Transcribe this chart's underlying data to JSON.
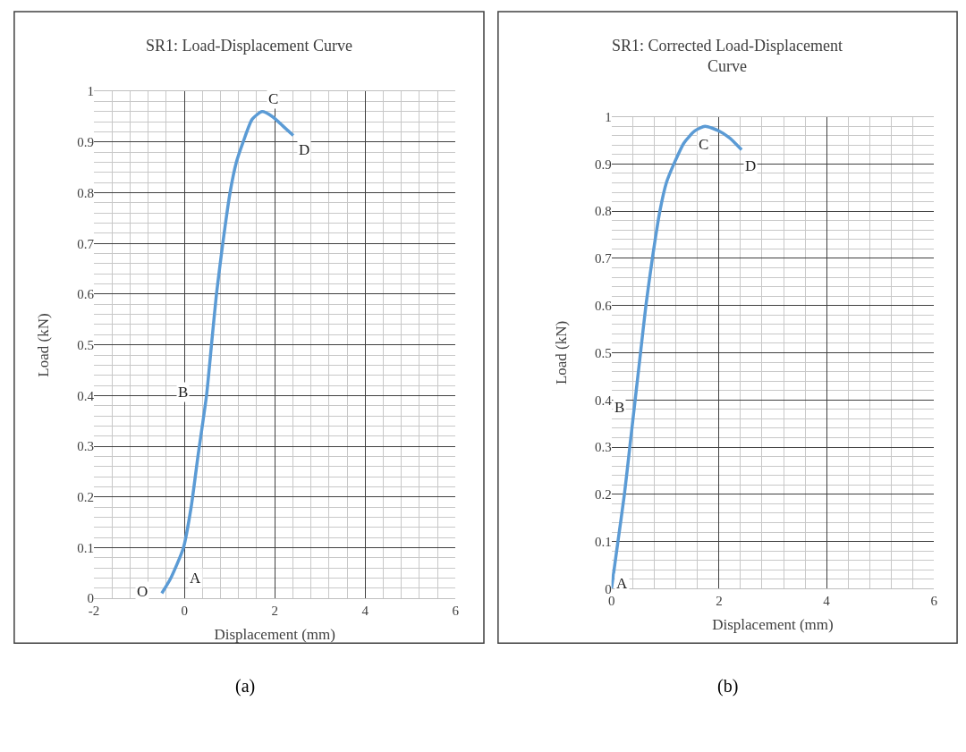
{
  "chart_data": [
    {
      "type": "line",
      "title": "SR1: Load-Displacement Curve",
      "xlabel": "Displacement (mm)",
      "ylabel": "Load (kN)",
      "x": [
        -0.5,
        -0.3,
        -0.02,
        0.15,
        0.3,
        0.49,
        0.6,
        0.71,
        0.85,
        1.01,
        1.15,
        1.3,
        1.5,
        1.72,
        1.95,
        2.2,
        2.41
      ],
      "series": [
        {
          "color": "#5b9bd5",
          "values": [
            0.01,
            0.04,
            0.1,
            0.18,
            0.28,
            0.4,
            0.5,
            0.6,
            0.7,
            0.8,
            0.86,
            0.9,
            0.945,
            0.96,
            0.95,
            0.93,
            0.913
          ]
        }
      ],
      "xlim": [
        -2,
        6
      ],
      "xticks": [
        -2,
        0,
        2,
        4,
        6
      ],
      "ylim": [
        0,
        1
      ],
      "yticks": [
        0,
        0.1,
        0.2,
        0.3,
        0.4,
        0.5,
        0.6,
        0.7,
        0.8,
        0.9,
        1
      ],
      "grid": true,
      "marker": "none",
      "line_style": "solid",
      "annotations": [
        {
          "text": "O",
          "x": -0.5,
          "y": 0.01
        },
        {
          "text": "A",
          "x": -0.3,
          "y": 0.04
        },
        {
          "text": "B",
          "x": 0.49,
          "y": 0.4
        },
        {
          "text": "C",
          "x": 1.72,
          "y": 0.96
        },
        {
          "text": "D",
          "x": 2.41,
          "y": 0.913
        },
        "(a)"
      ]
    },
    {
      "type": "line",
      "title": "SR1: Corrected Load-Displacement Curve",
      "xlabel": "Displacement (mm)",
      "ylabel": "Load (kN)",
      "x": [
        0,
        0.12,
        0.24,
        0.34,
        0.44,
        0.54,
        0.64,
        0.76,
        0.9,
        1.02,
        1.16,
        1.35,
        1.55,
        1.74,
        2.0,
        2.2,
        2.42
      ],
      "series": [
        {
          "color": "#5b9bd5",
          "values": [
            0,
            0.1,
            0.2,
            0.3,
            0.4,
            0.5,
            0.6,
            0.7,
            0.8,
            0.86,
            0.9,
            0.945,
            0.97,
            0.98,
            0.97,
            0.955,
            0.93
          ]
        }
      ],
      "xlim": [
        0,
        6
      ],
      "xticks": [
        0,
        2,
        4,
        6
      ],
      "ylim": [
        0,
        1
      ],
      "yticks": [
        0,
        0.1,
        0.2,
        0.3,
        0.4,
        0.5,
        0.6,
        0.7,
        0.8,
        0.9,
        1
      ],
      "grid": true,
      "marker": "none",
      "line_style": "solid",
      "annotations": [
        {
          "text": "A",
          "x": 0,
          "y": 0
        },
        {
          "text": "B",
          "x": 0.44,
          "y": 0.4
        },
        {
          "text": "C",
          "x": 1.74,
          "y": 0.98
        },
        {
          "text": "D",
          "x": 2.42,
          "y": 0.93
        },
        "(b)"
      ]
    }
  ]
}
